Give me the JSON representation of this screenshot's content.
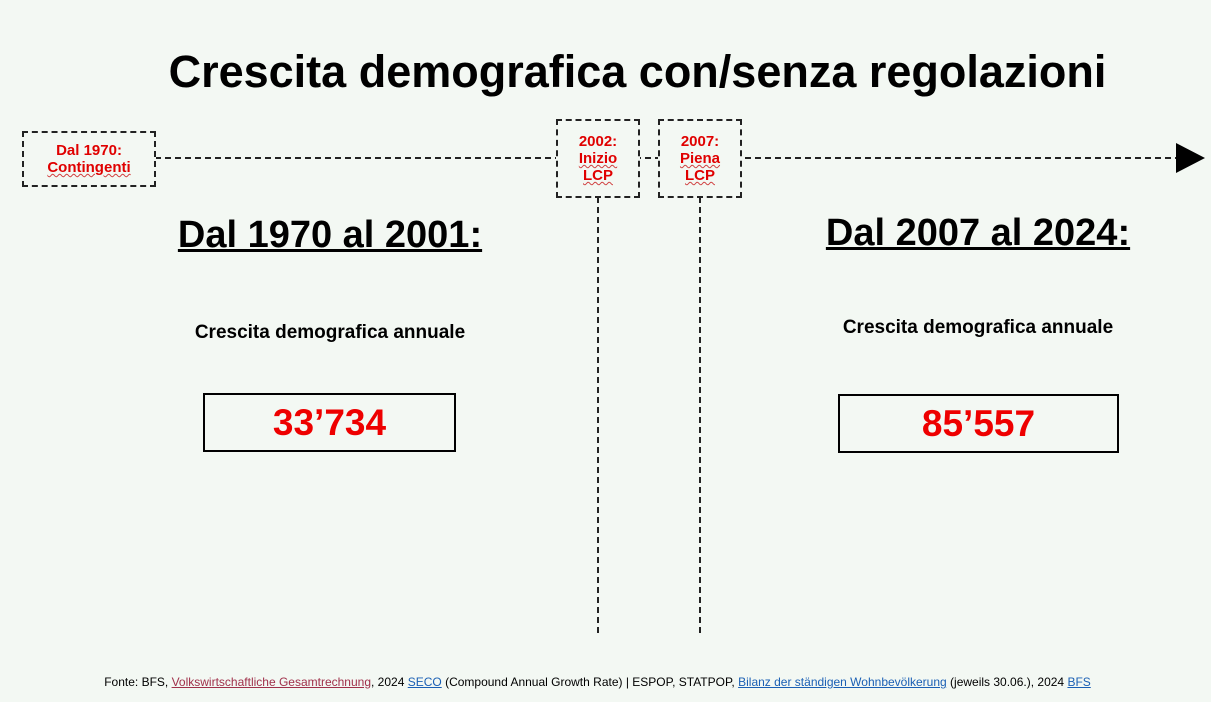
{
  "title": "Crescita demografica con/senza regolazioni",
  "timeline": [
    {
      "lines": [
        "Dal 1970:",
        "Contingenti"
      ]
    },
    {
      "lines": [
        "2002:",
        "Inizio",
        "LCP"
      ]
    },
    {
      "lines": [
        "2007:",
        "Piena",
        "LCP"
      ]
    }
  ],
  "panels": [
    {
      "heading": "Dal 1970 al 2001:",
      "label": "Crescita demografica annuale",
      "value": "33’734"
    },
    {
      "heading": "Dal 2007 al 2024:",
      "label": "Crescita demografica annuale",
      "value": "85’557"
    }
  ],
  "footer": [
    "Fonte: BFS, ",
    "Volkswirtschaftliche Gesamtrechnung",
    ", 2024 ",
    "SECO",
    " (Compound Annual Growth Rate) | ESPOP, STATPOP, ",
    "Bilanz der ständigen Wohnbevölkerung",
    " (jeweils 30.06.), 2024 ",
    "BFS"
  ]
}
